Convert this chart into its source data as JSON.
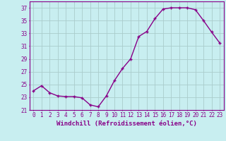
{
  "x": [
    0,
    1,
    2,
    3,
    4,
    5,
    6,
    7,
    8,
    9,
    10,
    11,
    12,
    13,
    14,
    15,
    16,
    17,
    18,
    19,
    20,
    21,
    22,
    23
  ],
  "y": [
    24.0,
    24.8,
    23.7,
    23.2,
    23.1,
    23.1,
    22.9,
    21.8,
    21.5,
    23.2,
    25.6,
    27.5,
    29.0,
    32.5,
    33.3,
    35.3,
    36.8,
    37.0,
    37.0,
    37.0,
    36.7,
    35.0,
    33.2,
    31.5
  ],
  "line_color": "#880088",
  "marker": "+",
  "marker_size": 3,
  "linewidth": 1.0,
  "xlabel": "Windchill (Refroidissement éolien,°C)",
  "xlabel_fontsize": 6.5,
  "ylim": [
    21,
    38
  ],
  "xlim": [
    -0.5,
    23.5
  ],
  "yticks": [
    21,
    23,
    25,
    27,
    29,
    31,
    33,
    35,
    37
  ],
  "bg_color": "#c8eef0",
  "grid_color": "#aacccc",
  "tick_fontsize": 5.5,
  "marker_color": "#880088"
}
